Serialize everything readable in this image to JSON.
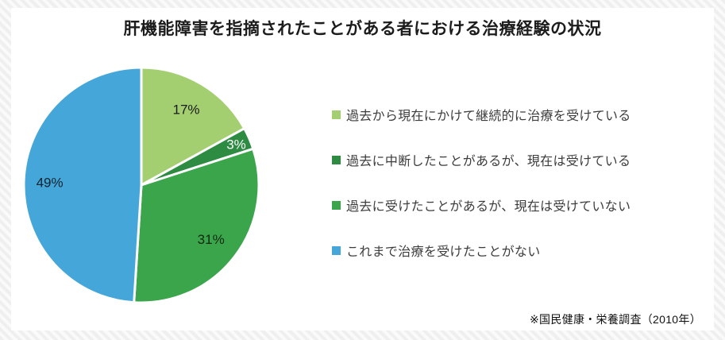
{
  "title": "肝機能障害を指摘されたことがある者における治療経験の状況",
  "footer": {
    "source_note": "※国民健康・栄養調査（2010年）"
  },
  "chart_data": {
    "type": "pie",
    "title": "肝機能障害を指摘されたことがある者における治療経験の状況",
    "legend_position": "right",
    "source_note": "※国民健康・栄養調査（2010年）",
    "direction": "clockwise",
    "start_angle": "top",
    "slices": [
      {
        "label": "過去から現在にかけて継続的に治療を受けている",
        "value": 17,
        "pct_label": "17%",
        "color": "#a3cf71",
        "text_color": "#1a1a1a",
        "label_r": 0.75
      },
      {
        "label": "過去に中断したことがあるが、現在は受けている",
        "value": 3,
        "pct_label": "3%",
        "color": "#2e8b42",
        "text_color": "#ffffff",
        "label_r": 0.88
      },
      {
        "label": "過去に受けたことがあるが、現在は受けていない",
        "value": 31,
        "pct_label": "31%",
        "color": "#3ba54c",
        "text_color": "#10290f",
        "label_r": 0.75
      },
      {
        "label": "これまで治療を受けたことがない",
        "value": 49,
        "pct_label": "49%",
        "color": "#45a6d9",
        "text_color": "#102430",
        "label_r": 0.78
      }
    ]
  }
}
